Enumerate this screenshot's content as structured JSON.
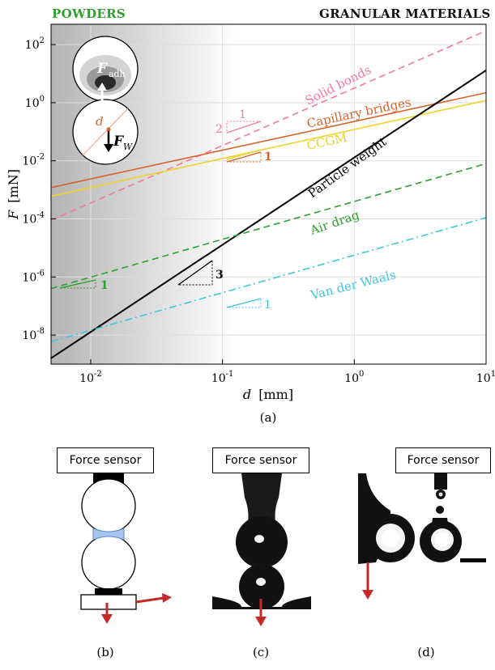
{
  "header": {
    "left": "POWDERS",
    "right": "GRANULAR MATERIALS"
  },
  "panel_a_caption": "(a)",
  "chart_data": {
    "type": "line",
    "xlabel_var": "d",
    "xlabel_unit": "[mm]",
    "ylabel_var": "F",
    "ylabel_unit": "[mN]",
    "xscale": "log",
    "yscale": "log",
    "xlim": [
      0.005,
      10
    ],
    "ylim": [
      1e-09,
      500
    ],
    "x_ticks": [
      {
        "value": 0.01,
        "base": "10",
        "exp": "-2"
      },
      {
        "value": 0.1,
        "base": "10",
        "exp": "-1"
      },
      {
        "value": 1,
        "base": "10",
        "exp": "0"
      },
      {
        "value": 10,
        "base": "10",
        "exp": "1"
      }
    ],
    "y_ticks": [
      {
        "value": 1e-08,
        "base": "10",
        "exp": "-8"
      },
      {
        "value": 1e-06,
        "base": "10",
        "exp": "-6"
      },
      {
        "value": 0.0001,
        "base": "10",
        "exp": "-4"
      },
      {
        "value": 0.01,
        "base": "10",
        "exp": "-2"
      },
      {
        "value": 1,
        "base": "10",
        "exp": "0"
      },
      {
        "value": 100,
        "base": "10",
        "exp": "2"
      }
    ],
    "grid": true,
    "series": [
      {
        "name": "Solid bonds",
        "color": "#f07aa0",
        "dash": "dashed",
        "x": [
          0.005,
          10
        ],
        "y": [
          9e-05,
          300
        ]
      },
      {
        "name": "Capillary bridges",
        "color": "#d9622b",
        "dash": "solid",
        "x": [
          0.005,
          10
        ],
        "y": [
          0.0012,
          2.2
        ]
      },
      {
        "name": "CCGM",
        "color": "#ecd22a",
        "dash": "solid",
        "x": [
          0.005,
          10
        ],
        "y": [
          0.0006,
          1.2
        ]
      },
      {
        "name": "Particle weight",
        "color": "#000000",
        "dash": "solid",
        "x": [
          0.005,
          10
        ],
        "y": [
          1.6e-09,
          13
        ]
      },
      {
        "name": "Air drag",
        "color": "#2ca02c",
        "dash": "dashed",
        "x": [
          0.005,
          10
        ],
        "y": [
          4e-07,
          0.008
        ]
      },
      {
        "name": "Van der Waals",
        "color": "#3fc6e0",
        "dash": "dashdot",
        "x": [
          0.005,
          10
        ],
        "y": [
          6e-09,
          0.00011
        ]
      }
    ],
    "slope_labels": [
      {
        "text": "1",
        "color": "#f07aa0"
      },
      {
        "text": "2",
        "color": "#f07aa0"
      },
      {
        "text": "1",
        "color": "#d9622b"
      },
      {
        "text": "3",
        "color": "#000000"
      },
      {
        "text": "1",
        "color": "#2ca02c"
      },
      {
        "text": "1",
        "color": "#3fc6e0"
      }
    ],
    "inset": {
      "force_adh": "F",
      "force_adh_sub": "adh",
      "diameter": "d",
      "force_w": "F",
      "force_w_sub": "W"
    }
  },
  "panels": [
    {
      "id": "b",
      "sensor_label": "Force sensor",
      "caption": "(b)"
    },
    {
      "id": "c",
      "sensor_label": "Force sensor",
      "caption": "(c)"
    },
    {
      "id": "d",
      "sensor_label": "Force sensor",
      "caption": "(d)"
    }
  ]
}
